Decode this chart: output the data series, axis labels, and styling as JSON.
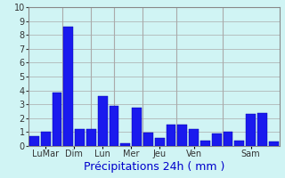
{
  "bar_values": [
    0.7,
    1.0,
    3.85,
    8.6,
    1.25,
    1.25,
    3.6,
    2.9,
    0.2,
    2.75,
    0.95,
    0.6,
    1.55,
    1.55,
    1.2,
    0.4,
    0.9,
    1.0,
    0.4,
    2.3,
    2.35,
    0.35
  ],
  "bar_color": "#1a1aee",
  "bar_edge_color": "#0000aa",
  "day_labels": [
    "LuMar",
    "Dim",
    "Lun",
    "Mer",
    "Jeu",
    "Ven",
    "Sam"
  ],
  "group_centers": [
    1.0,
    3.5,
    6.0,
    8.5,
    11.0,
    14.0,
    19.0
  ],
  "separator_x": [
    2.5,
    5.0,
    7.0,
    9.5,
    12.5,
    16.5
  ],
  "xlabel": "Précipitations 24h ( mm )",
  "ylim": [
    0,
    10
  ],
  "yticks": [
    0,
    1,
    2,
    3,
    4,
    5,
    6,
    7,
    8,
    9,
    10
  ],
  "background_color": "#d0f4f4",
  "grid_color": "#aaaaaa",
  "xlabel_color": "#0000cc",
  "xlabel_fontsize": 9,
  "tick_fontsize": 7
}
